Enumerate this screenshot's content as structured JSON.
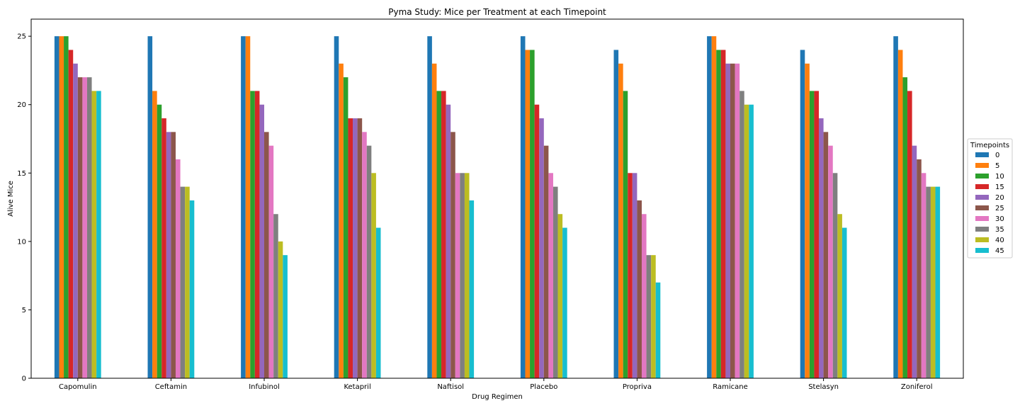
{
  "chart_data": {
    "type": "bar",
    "title": "Pyma Study: Mice per Treatment at each Timepoint",
    "xlabel": "Drug Regimen",
    "ylabel": "Alive Mice",
    "ylim": [
      0,
      26.25
    ],
    "yticks": [
      0,
      5,
      10,
      15,
      20,
      25
    ],
    "grid": false,
    "legend_title": "Timepoints",
    "legend_position": "center-right outside",
    "categories": [
      "Capomulin",
      "Ceftamin",
      "Infubinol",
      "Ketapril",
      "Naftisol",
      "Placebo",
      "Propriva",
      "Ramicane",
      "Stelasyn",
      "Zoniferol"
    ],
    "series": [
      {
        "name": "0",
        "color": "#1f77b4",
        "values": [
          25,
          25,
          25,
          25,
          25,
          25,
          24,
          25,
          24,
          25
        ]
      },
      {
        "name": "5",
        "color": "#ff7f0e",
        "values": [
          25,
          21,
          25,
          23,
          23,
          24,
          23,
          25,
          23,
          24
        ]
      },
      {
        "name": "10",
        "color": "#2ca02c",
        "values": [
          25,
          20,
          21,
          22,
          21,
          24,
          21,
          24,
          21,
          22
        ]
      },
      {
        "name": "15",
        "color": "#d62728",
        "values": [
          24,
          19,
          21,
          19,
          21,
          20,
          15,
          24,
          21,
          21
        ]
      },
      {
        "name": "20",
        "color": "#9467bd",
        "values": [
          23,
          18,
          20,
          19,
          20,
          19,
          15,
          23,
          19,
          17
        ]
      },
      {
        "name": "25",
        "color": "#8c564b",
        "values": [
          22,
          18,
          18,
          19,
          18,
          17,
          13,
          23,
          18,
          16
        ]
      },
      {
        "name": "30",
        "color": "#e377c2",
        "values": [
          22,
          16,
          17,
          18,
          15,
          15,
          12,
          23,
          17,
          15
        ]
      },
      {
        "name": "35",
        "color": "#7f7f7f",
        "values": [
          22,
          14,
          12,
          17,
          15,
          14,
          9,
          21,
          15,
          14
        ]
      },
      {
        "name": "40",
        "color": "#bcbd22",
        "values": [
          21,
          14,
          10,
          15,
          15,
          12,
          9,
          20,
          12,
          14
        ]
      },
      {
        "name": "45",
        "color": "#17becf",
        "values": [
          21,
          13,
          9,
          11,
          13,
          11,
          7,
          20,
          11,
          14
        ]
      }
    ]
  }
}
